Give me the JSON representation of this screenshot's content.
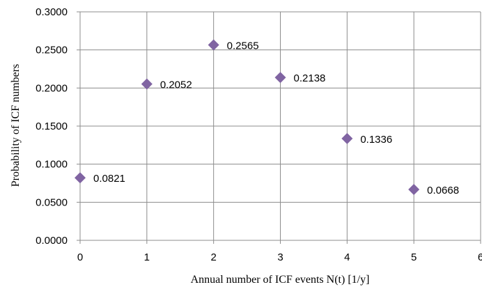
{
  "chart_data": {
    "type": "scatter",
    "title": "",
    "xlabel": "Annual number of ICF events N(t) [1/y]",
    "ylabel": "Probability of ICF numbers",
    "xlim": [
      0,
      6
    ],
    "ylim": [
      0,
      0.3
    ],
    "x_ticks": [
      "0",
      "1",
      "2",
      "3",
      "4",
      "5",
      "6"
    ],
    "y_ticks": [
      "0.0000",
      "0.0500",
      "0.1000",
      "0.1500",
      "0.2000",
      "0.2500",
      "0.3000"
    ],
    "grid": true,
    "legend": "none",
    "marker": "diamond",
    "marker_color": "#8064a2",
    "series": [
      {
        "x": [
          0,
          1,
          2,
          3,
          4,
          5
        ],
        "y": [
          0.0821,
          0.2052,
          0.2565,
          0.2138,
          0.1336,
          0.0668
        ],
        "labels": [
          "0.0821",
          "0.2052",
          "0.2565",
          "0.2138",
          "0.1336",
          "0.0668"
        ]
      }
    ]
  }
}
